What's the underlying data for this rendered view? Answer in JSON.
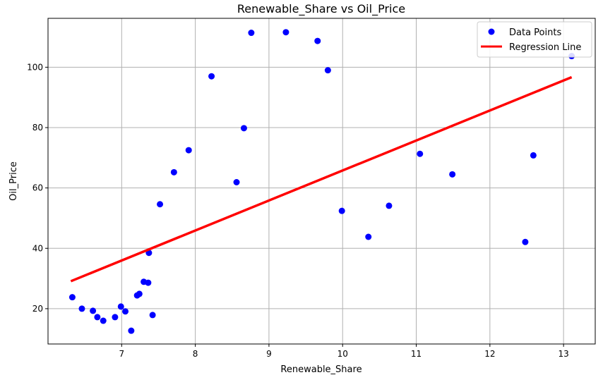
{
  "chart_data": {
    "type": "scatter",
    "title": "Renewable_Share vs Oil_Price",
    "xlabel": "Renewable_Share",
    "ylabel": "Oil_Price",
    "xlim": [
      6.0,
      13.43
    ],
    "ylim": [
      8.3,
      116.2
    ],
    "xticks": [
      7,
      8,
      9,
      10,
      11,
      12,
      13
    ],
    "yticks": [
      20,
      40,
      60,
      80,
      100
    ],
    "grid": true,
    "legend_position": "top-right",
    "series": [
      {
        "name": "Data Points",
        "kind": "scatter",
        "color": "#0000ff",
        "x": [
          6.33,
          6.46,
          6.61,
          6.67,
          6.75,
          6.91,
          6.99,
          7.05,
          7.13,
          7.21,
          7.24,
          7.3,
          7.36,
          7.37,
          7.42,
          7.52,
          7.71,
          7.91,
          8.22,
          8.56,
          8.66,
          8.76,
          9.23,
          9.66,
          9.8,
          9.99,
          10.35,
          10.63,
          11.05,
          11.49,
          12.48,
          12.59,
          13.11
        ],
        "y": [
          23.8,
          20.0,
          19.3,
          17.2,
          16.0,
          17.2,
          20.7,
          19.1,
          12.7,
          24.4,
          24.9,
          28.9,
          28.6,
          38.5,
          17.9,
          54.6,
          65.2,
          72.5,
          97.0,
          61.9,
          79.8,
          111.4,
          111.6,
          108.7,
          99.0,
          52.4,
          43.8,
          54.1,
          71.3,
          64.5,
          42.1,
          70.8,
          103.7
        ]
      },
      {
        "name": "Regression Line",
        "kind": "line",
        "color": "#ff0000",
        "x": [
          6.31,
          13.11
        ],
        "y": [
          29.1,
          96.7
        ]
      }
    ]
  }
}
